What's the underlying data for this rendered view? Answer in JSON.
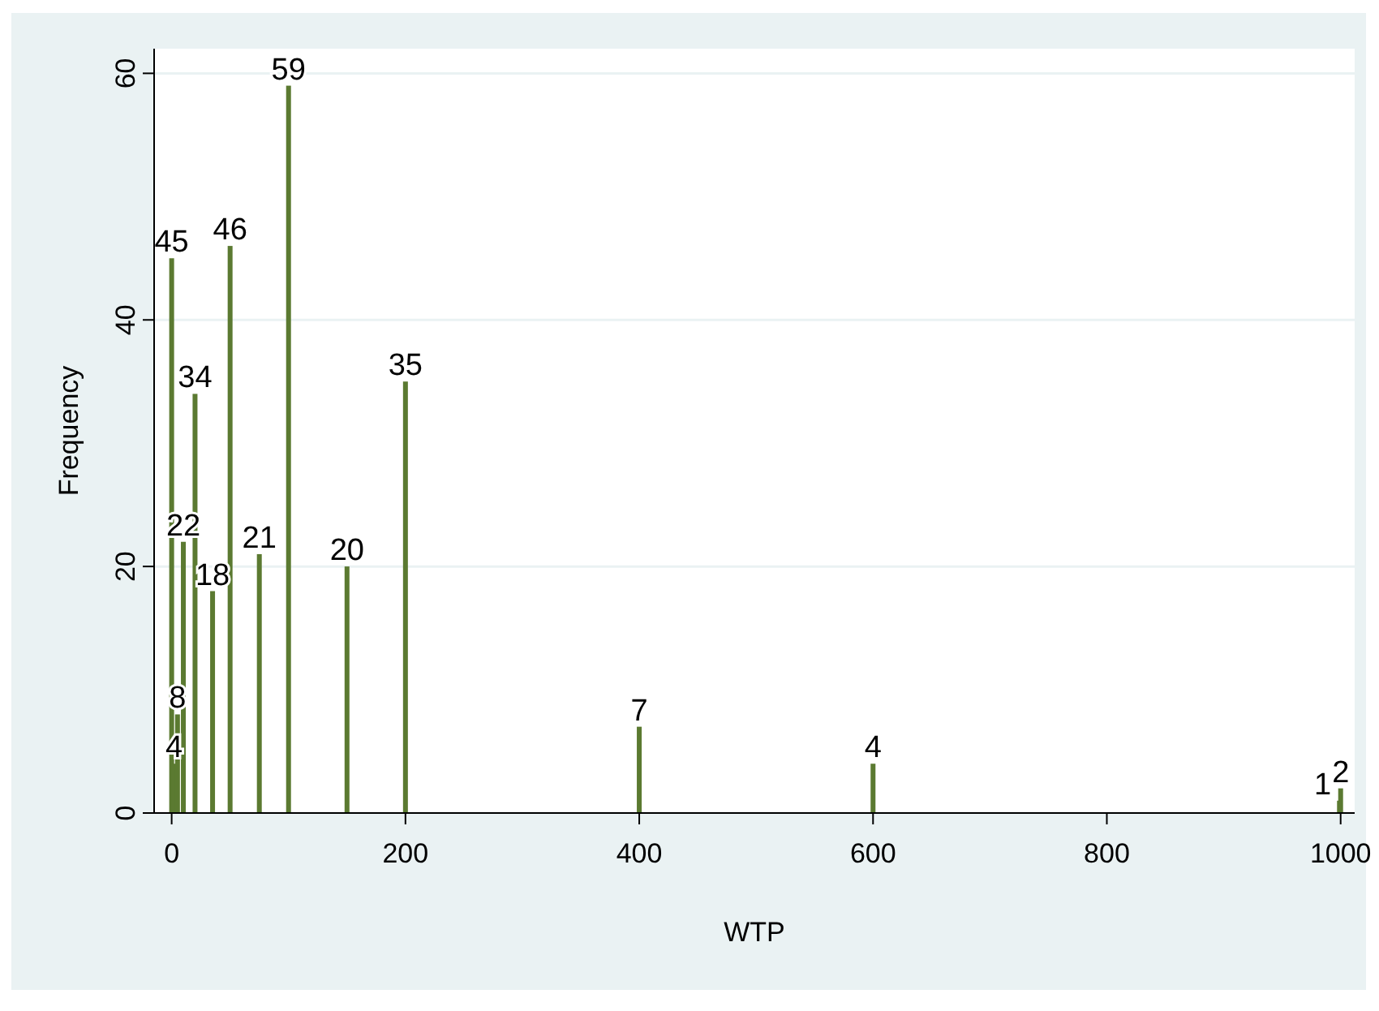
{
  "chart_data": {
    "type": "bar",
    "xlabel": "WTP",
    "ylabel": "Frequency",
    "x": [
      0,
      2,
      5,
      10,
      20,
      35,
      50,
      75,
      100,
      150,
      200,
      400,
      600,
      999,
      1000
    ],
    "values": [
      45,
      4,
      8,
      22,
      34,
      18,
      46,
      21,
      59,
      20,
      35,
      7,
      4,
      1,
      2
    ],
    "color": "#5b7a31",
    "xlim": [
      -15,
      1012
    ],
    "xticks": [
      0,
      200,
      400,
      600,
      800,
      1000
    ],
    "ylim": [
      0,
      62
    ],
    "yticks": [
      0,
      20,
      40,
      60
    ],
    "grid": "y",
    "data_labels": true
  }
}
